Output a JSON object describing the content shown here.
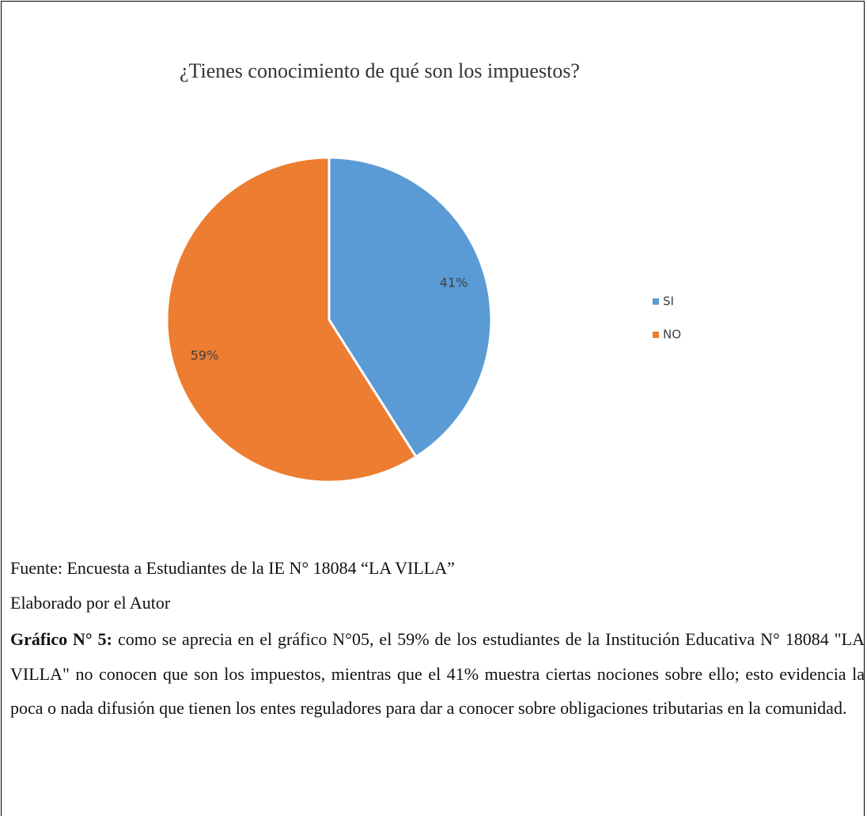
{
  "chart_data": {
    "type": "pie",
    "title": "¿Tienes conocimiento de qué son los impuestos?",
    "categories": [
      "SI",
      "NO"
    ],
    "values": [
      41,
      59
    ],
    "value_labels": [
      "41%",
      "59%"
    ],
    "colors": [
      "#5b9bd5",
      "#ed7d31"
    ],
    "legend": "right"
  },
  "notes": {
    "source": "Fuente: Encuesta a Estudiantes de la IE N° 18084 “LA VILLA”",
    "author": "Elaborado por el Autor"
  },
  "paragraph": {
    "lead": "Gráfico N° 5:",
    "text": " como se aprecia en el gráfico N°05, el 59% de los estudiantes de la Institución Educativa N° 18084 \"LA VILLA\" no conocen que son los impuestos, mientras que el 41% muestra ciertas nociones sobre ello; esto evidencia la poca o nada difusión que tienen los entes reguladores para dar a conocer sobre obligaciones tributarias en la comunidad."
  }
}
